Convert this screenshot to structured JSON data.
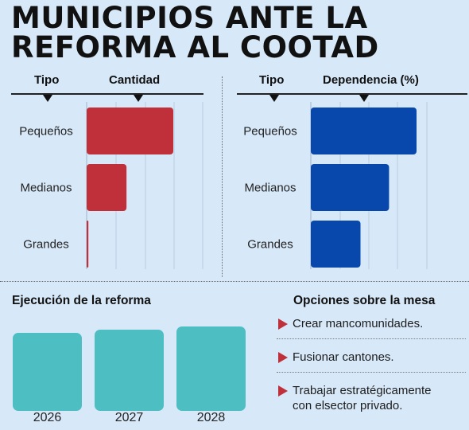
{
  "title": {
    "line1": "MUNICIPIOS ANTE LA",
    "line2": "REFORMA AL COOTAD"
  },
  "colors": {
    "background": "#d7e8f8",
    "red": "#c0303a",
    "blue": "#0848ad",
    "teal": "#4dbfc3",
    "option_bullet": "#c0303a"
  },
  "chart_data": [
    {
      "type": "bar",
      "orientation": "horizontal",
      "headers": {
        "category": "Tipo",
        "value": "Cantidad"
      },
      "categories": [
        "Pequeños",
        "Medianos",
        "Grandes"
      ],
      "values": [
        100,
        46,
        2
      ],
      "xlim": [
        0,
        100
      ],
      "grid": true,
      "color": "#c0303a"
    },
    {
      "type": "bar",
      "orientation": "horizontal",
      "headers": {
        "category": "Tipo",
        "value": "Dependencia (%)"
      },
      "categories": [
        "Pequeños",
        "Medianos",
        "Grandes"
      ],
      "values": [
        100,
        74,
        47
      ],
      "xlim": [
        0,
        100
      ],
      "grid": true,
      "color": "#0848ad"
    },
    {
      "type": "bar",
      "orientation": "vertical",
      "title": "Ejecución de la reforma",
      "categories": [
        "2026",
        "2027",
        "2028"
      ],
      "values": [
        92,
        96,
        100
      ],
      "ylim": [
        0,
        100
      ],
      "color": "#4dbfc3"
    }
  ],
  "options": {
    "title": "Opciones sobre la mesa",
    "items": [
      {
        "line1": "Crear mancomunidades.",
        "line2": ""
      },
      {
        "line1": "Fusionar cantones.",
        "line2": ""
      },
      {
        "line1": "Trabajar estratégicamente",
        "line2": "con elsector privado."
      }
    ]
  }
}
